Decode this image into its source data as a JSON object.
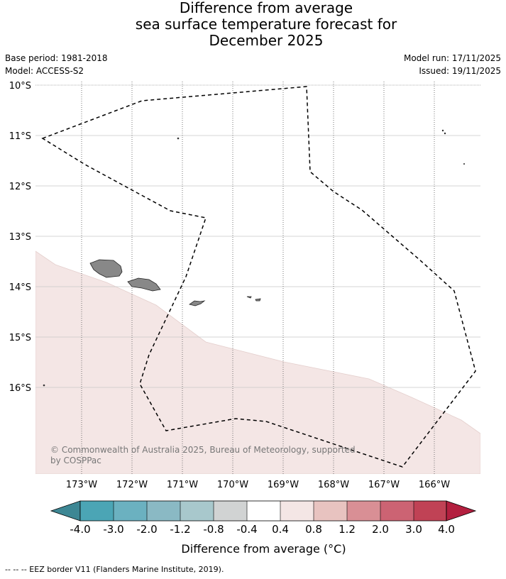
{
  "header": {
    "title_line1": "Difference from average",
    "title_line2": "sea surface temperature forecast for",
    "title_line3": "December 2025",
    "base_period": "Base period: 1981-2018",
    "model": "Model: ACCESS-S2",
    "model_run": "Model run: 17/11/2025",
    "issued": "Issued: 19/11/2025"
  },
  "map": {
    "lat_labels": [
      "10°S",
      "11°S",
      "12°S",
      "13°S",
      "14°S",
      "15°S",
      "16°S"
    ],
    "lon_labels": [
      "173°W",
      "172°W",
      "171°W",
      "170°W",
      "169°W",
      "168°W",
      "167°W",
      "166°W"
    ],
    "copyright_line1": "© Commonwealth of Australia 2025, Bureau of Meteorology, supported",
    "copyright_line2": "by COSPPac",
    "anomaly_fill_color": "#f4e6e5",
    "land_color": "#888888"
  },
  "colorbar": {
    "tick_labels": [
      "-4.0",
      "-3.0",
      "-2.0",
      "-1.2",
      "-0.8",
      "-0.4",
      "0.4",
      "0.8",
      "1.2",
      "2.0",
      "3.0",
      "4.0"
    ],
    "colors": [
      "#3d8794",
      "#4ba5b5",
      "#6bb1c0",
      "#8ab9c4",
      "#a8c8cc",
      "#d1d3d3",
      "#ffffff",
      "#f4e6e5",
      "#e8c3c0",
      "#d98f95",
      "#cc6373",
      "#c04255",
      "#b31f3f"
    ],
    "label": "Difference from average (°C)"
  },
  "legend": {
    "eez": "--  --  -- EEZ border V11 (Flanders Marine Institute, 2019)."
  }
}
